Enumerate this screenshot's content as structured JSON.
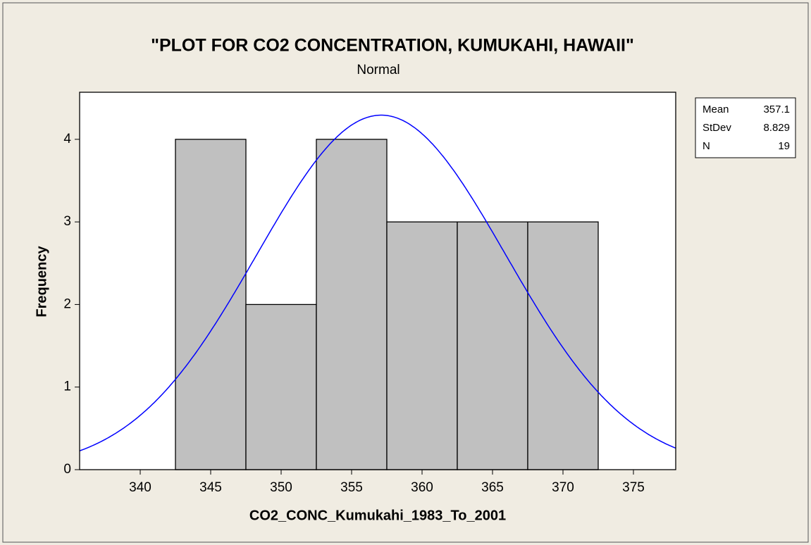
{
  "chart_data": {
    "type": "histogram",
    "title": "\"PLOT FOR CO2 CONCENTRATION, KUMUKAHI, HAWAII\"",
    "subtitle": "Normal",
    "x_label": "CO2_CONC_Kumukahi_1983_To_2001",
    "y_label": "Frequency",
    "bins": [
      342.5,
      347.5,
      352.5,
      357.5,
      362.5,
      367.5,
      372.5
    ],
    "values": [
      4,
      2,
      4,
      3,
      3,
      3
    ],
    "color": "#c0c0c0",
    "curve_color": "#0000ff",
    "xlim": [
      335.7,
      378
    ],
    "xticks": [
      340,
      345,
      350,
      355,
      360,
      365,
      370,
      375
    ],
    "ylim": [
      0,
      4.57
    ],
    "yticks": [
      0,
      1,
      2,
      3,
      4
    ],
    "stats": [
      {
        "label": "Mean",
        "value": 357.1
      },
      {
        "label": "StDev",
        "value": 8.829
      },
      {
        "label": "N",
        "value": 19
      }
    ]
  }
}
